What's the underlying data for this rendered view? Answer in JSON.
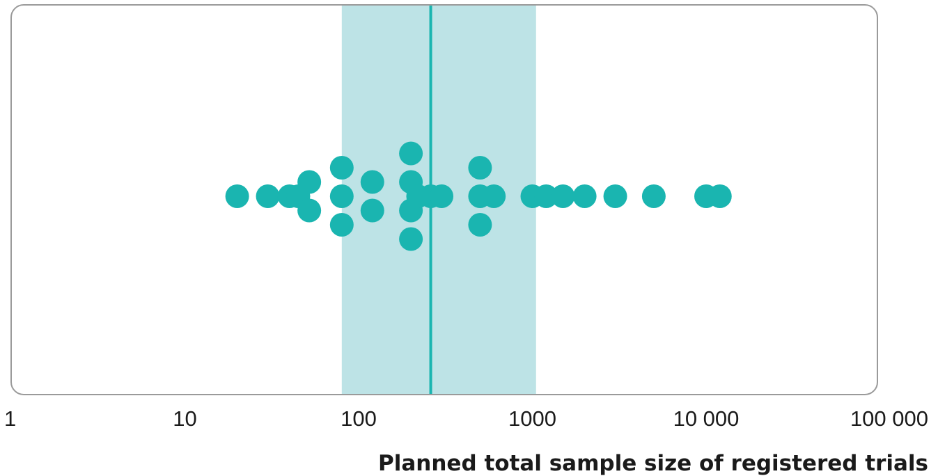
{
  "chart_data": {
    "type": "scatter",
    "title": "",
    "xlabel": "Planned total sample size of registered trials",
    "ylabel": "",
    "x_scale": "log",
    "xlim": [
      1,
      100000
    ],
    "ticks": [
      {
        "value": 1,
        "label": "1"
      },
      {
        "value": 10,
        "label": "10"
      },
      {
        "value": 100,
        "label": "100"
      },
      {
        "value": 1000,
        "label": "1000"
      },
      {
        "value": 10000,
        "label": "10 000"
      },
      {
        "value": 100000,
        "label": "100 000"
      }
    ],
    "median": 260,
    "interquartile_range": [
      80,
      1050
    ],
    "grid": false,
    "colors": {
      "points": "#1ab5b0",
      "median_line": "#1ab5b0",
      "range_band": "#bde3e6",
      "frame": "#9a9a9a"
    },
    "points": [
      {
        "x": 20,
        "stack": 0
      },
      {
        "x": 30,
        "stack": 0
      },
      {
        "x": 40,
        "stack": 0
      },
      {
        "x": 45,
        "stack": 0
      },
      {
        "x": 52,
        "stack": 1
      },
      {
        "x": 52,
        "stack": -1
      },
      {
        "x": 80,
        "stack": 0
      },
      {
        "x": 80,
        "stack": 2
      },
      {
        "x": 80,
        "stack": -2
      },
      {
        "x": 120,
        "stack": 1
      },
      {
        "x": 120,
        "stack": -1
      },
      {
        "x": 200,
        "stack": 1
      },
      {
        "x": 200,
        "stack": -1
      },
      {
        "x": 200,
        "stack": 3
      },
      {
        "x": 200,
        "stack": -3
      },
      {
        "x": 220,
        "stack": 0
      },
      {
        "x": 260,
        "stack": 0
      },
      {
        "x": 300,
        "stack": 0
      },
      {
        "x": 500,
        "stack": 0
      },
      {
        "x": 500,
        "stack": 2
      },
      {
        "x": 500,
        "stack": -2
      },
      {
        "x": 600,
        "stack": 0
      },
      {
        "x": 1000,
        "stack": 0
      },
      {
        "x": 1200,
        "stack": 0
      },
      {
        "x": 1500,
        "stack": 0
      },
      {
        "x": 2000,
        "stack": 0
      },
      {
        "x": 3000,
        "stack": 0
      },
      {
        "x": 5000,
        "stack": 0
      },
      {
        "x": 10000,
        "stack": 0
      },
      {
        "x": 12000,
        "stack": 0
      }
    ]
  }
}
